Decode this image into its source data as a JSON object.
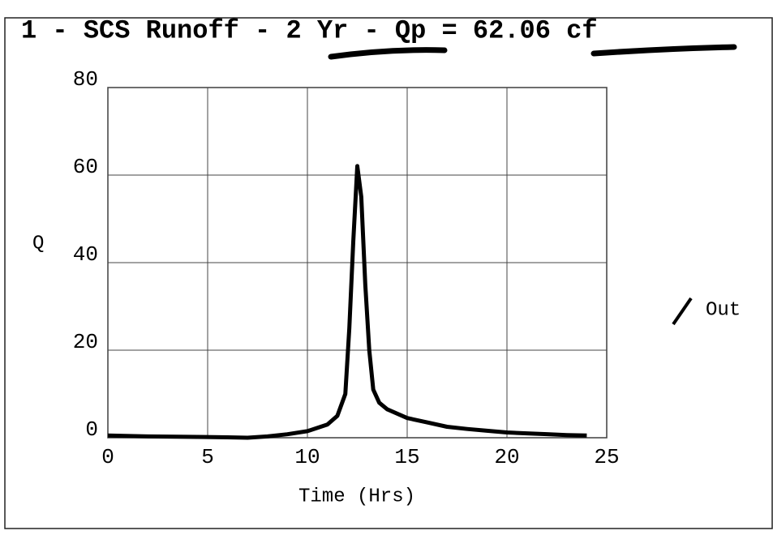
{
  "chart_data": {
    "type": "line",
    "title": "1 - SCS Runoff - 2 Yr - Qp = 62.06 cf",
    "xlabel": "Time (Hrs)",
    "ylabel": "Q",
    "x": [
      0,
      2,
      4,
      6,
      7,
      8,
      9,
      10,
      11,
      11.5,
      11.9,
      12.1,
      12.3,
      12.5,
      12.7,
      12.9,
      13.1,
      13.3,
      13.6,
      14,
      15,
      16,
      17,
      18,
      19,
      20,
      21,
      22,
      23,
      24
    ],
    "series": [
      {
        "name": "Out",
        "color": "#000000",
        "values": [
          0.5,
          0.3,
          0.2,
          0.1,
          0,
          0.3,
          0.8,
          1.5,
          3,
          5,
          10,
          25,
          45,
          62.06,
          55,
          35,
          20,
          11,
          8,
          6.5,
          4.5,
          3.5,
          2.5,
          2,
          1.6,
          1.2,
          1,
          0.8,
          0.6,
          0.5
        ]
      }
    ],
    "xlim": [
      0,
      25
    ],
    "xticks": [
      0,
      5,
      10,
      15,
      20,
      25
    ],
    "ylim": [
      0,
      80
    ],
    "yticks": [
      0,
      20,
      40,
      60,
      80
    ],
    "grid": true
  }
}
